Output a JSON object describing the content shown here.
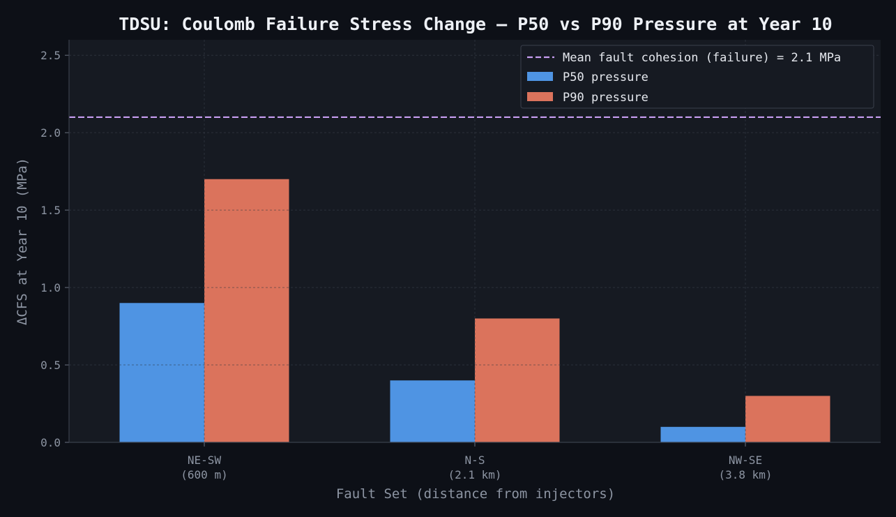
{
  "chart_data": {
    "type": "bar",
    "title": "TDSU: Coulomb Failure Stress Change — P50 vs P90 Pressure at Year 10",
    "xlabel": "Fault Set (distance from injectors)",
    "ylabel": "ΔCFS at Year 10 (MPa)",
    "ylim": [
      0,
      2.6
    ],
    "yticks": [
      "0.0",
      "0.5",
      "1.0",
      "1.5",
      "2.0",
      "2.5"
    ],
    "categories": [
      [
        "NE-SW",
        "(600 m)"
      ],
      [
        "N-S",
        "(2.1 km)"
      ],
      [
        "NW-SE",
        "(3.8 km)"
      ]
    ],
    "series": [
      {
        "name": "P50 pressure",
        "values": [
          0.9,
          0.4,
          0.1
        ],
        "color": "#4f94e3"
      },
      {
        "name": "P90 pressure",
        "values": [
          1.7,
          0.8,
          0.3
        ],
        "color": "#db735c"
      }
    ],
    "reference_line": {
      "label": "Mean fault cohesion (failure) = 2.1 MPa",
      "value": 2.1,
      "color": "#c89ef2",
      "style": "dashed"
    },
    "grid": true,
    "legend_position": "top-right",
    "colors": {
      "background": "#0d1017",
      "plot_background": "#161a22",
      "grid": "#262b35",
      "text": "#8d95a3",
      "title": "#eef1f6"
    }
  }
}
